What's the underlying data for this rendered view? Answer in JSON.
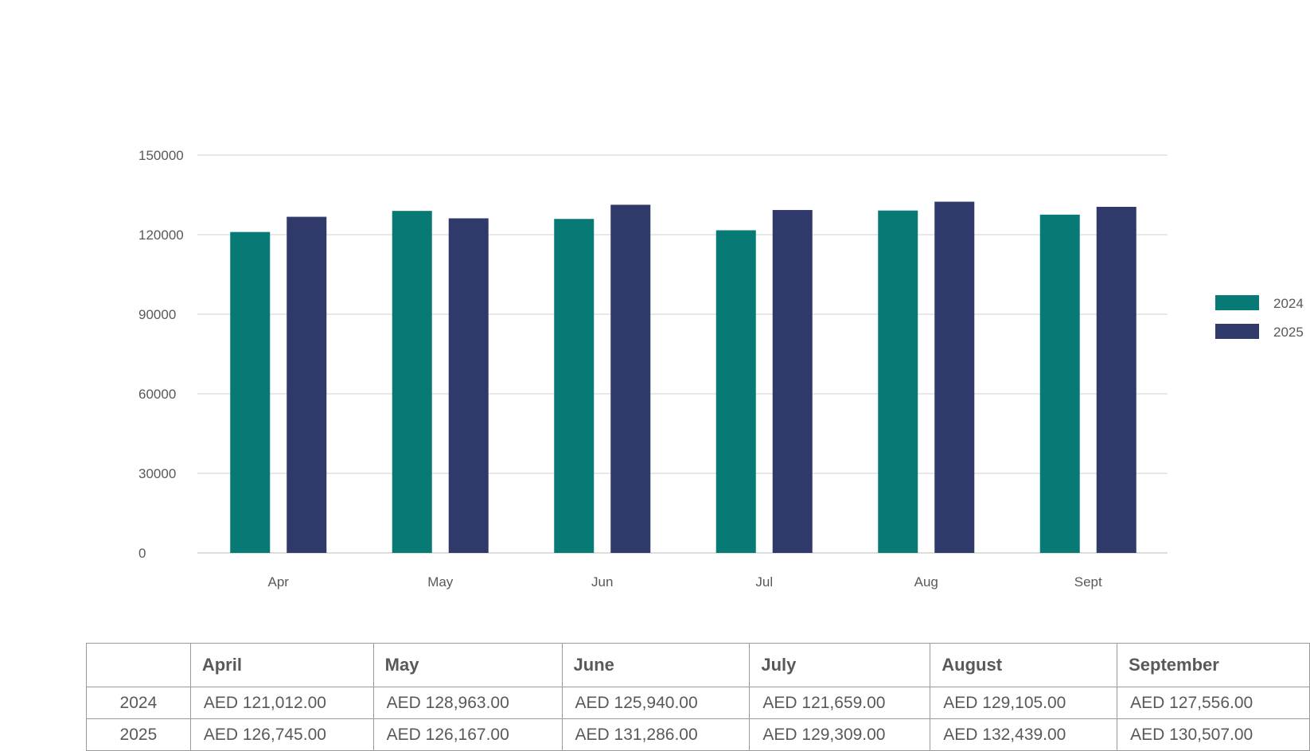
{
  "chart_data": {
    "type": "bar",
    "categories": [
      "Apr",
      "May",
      "Jun",
      "Jul",
      "Aug",
      "Sept"
    ],
    "series": [
      {
        "name": "2024",
        "color": "#077A75",
        "values": [
          121012,
          128963,
          125940,
          121659,
          129105,
          127556
        ]
      },
      {
        "name": "2025",
        "color": "#2F3A6B",
        "values": [
          126745,
          126167,
          131286,
          129309,
          132439,
          130507
        ]
      }
    ],
    "y_ticks": [
      "0",
      "30000",
      "60000",
      "90000",
      "120000",
      "150000"
    ],
    "ylim": [
      0,
      150000
    ],
    "grid": true,
    "legend_position": "right",
    "title": "",
    "xlabel": "",
    "ylabel": ""
  },
  "table": {
    "headers": [
      "April",
      "May",
      "June",
      "July",
      "August",
      "September"
    ],
    "rows": [
      {
        "label": "2024",
        "values": [
          "AED 121,012.00",
          "AED 128,963.00",
          "AED 125,940.00",
          "AED 121,659.00",
          "AED 129,105.00",
          "AED 127,556.00"
        ]
      },
      {
        "label": "2025",
        "values": [
          "AED 126,745.00",
          "AED 126,167.00",
          "AED 131,286.00",
          "AED 129,309.00",
          "AED 132,439.00",
          "AED 130,507.00"
        ]
      }
    ]
  }
}
